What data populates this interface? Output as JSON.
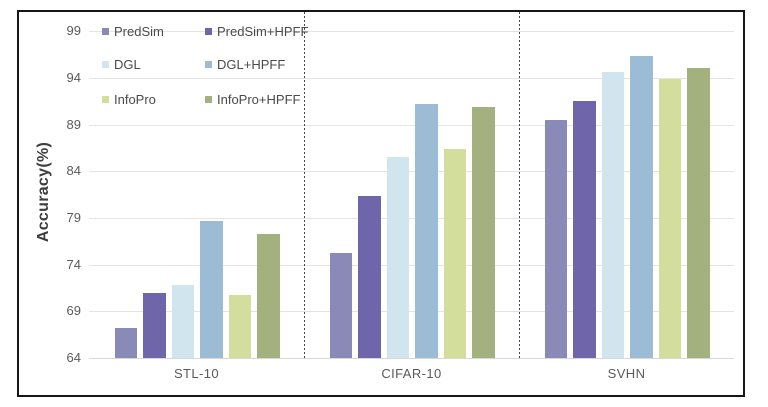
{
  "chart_data": {
    "type": "bar",
    "title": "",
    "xlabel": "",
    "ylabel": "Accuracy(%)",
    "categories": [
      "STL-10",
      "CIFAR-10",
      "SVHN"
    ],
    "series": [
      {
        "name": "PredSim",
        "color": "#8a8ab8",
        "values": [
          67.2,
          75.2,
          89.5
        ]
      },
      {
        "name": "PredSim+HPFF",
        "color": "#6e65aa",
        "values": [
          71.0,
          81.4,
          91.5
        ]
      },
      {
        "name": "DGL",
        "color": "#d0e5ed",
        "values": [
          71.8,
          85.5,
          94.6
        ]
      },
      {
        "name": "DGL+HPFF",
        "color": "#9cbcd6",
        "values": [
          78.7,
          91.2,
          96.4
        ]
      },
      {
        "name": "InfoPro",
        "color": "#d3de9d",
        "values": [
          70.8,
          86.4,
          93.9
        ]
      },
      {
        "name": "InfoPro+HPFF",
        "color": "#a2b17d",
        "values": [
          77.3,
          90.9,
          95.1
        ]
      }
    ],
    "yaxis": {
      "min": 64,
      "max": 99,
      "ticks": [
        64,
        69,
        74,
        79,
        84,
        89,
        94,
        99
      ]
    },
    "grid": true,
    "legend_position": "inside-top-left",
    "group_separators": "dotted-vertical-lines-between-categories",
    "frame_border_color": "#161616"
  }
}
